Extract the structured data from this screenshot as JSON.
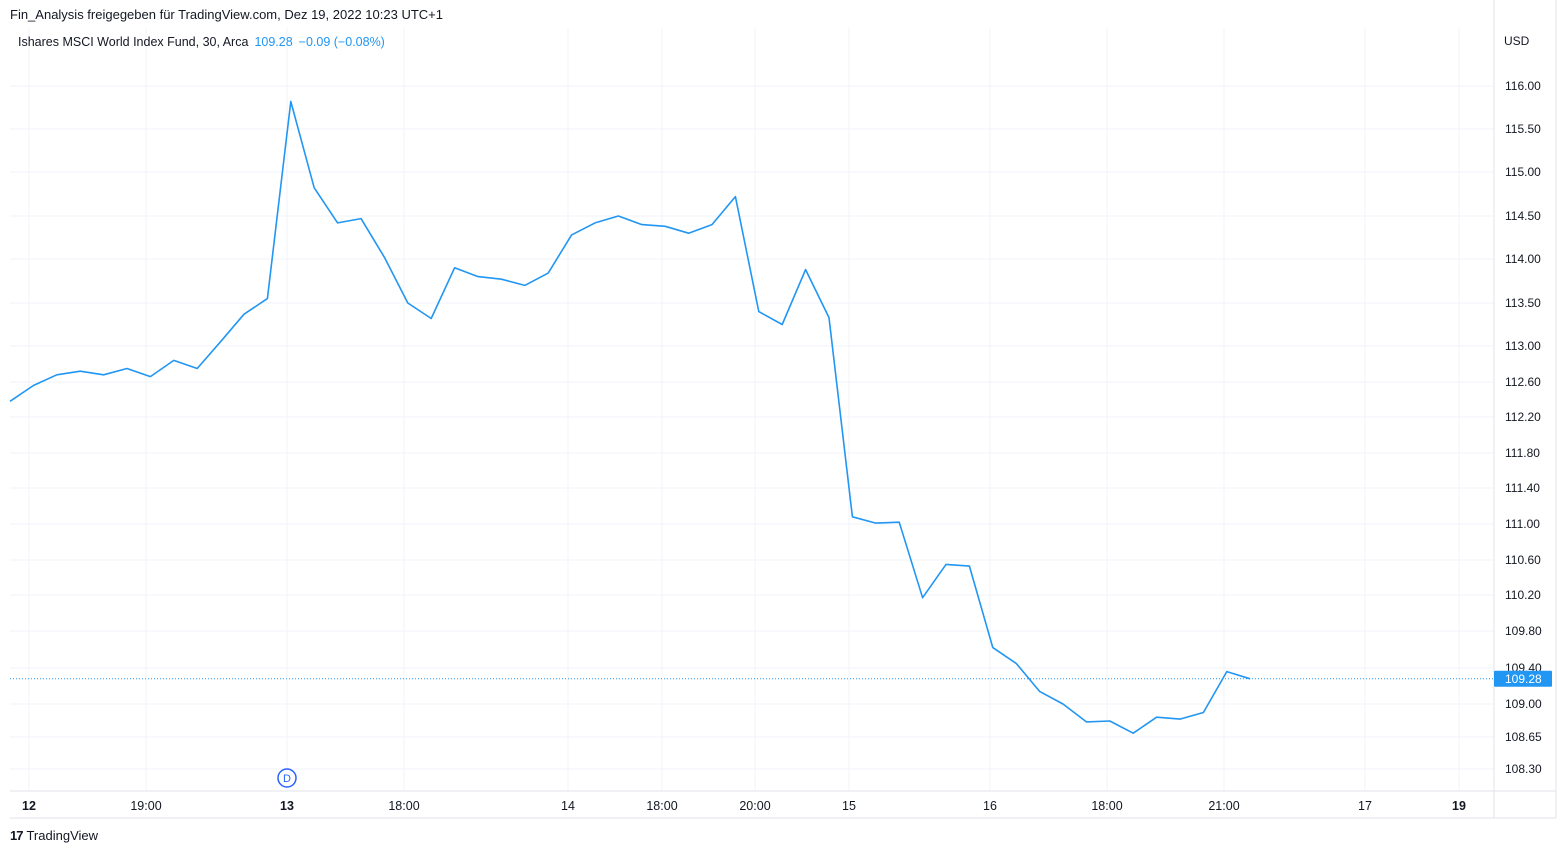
{
  "header": {
    "share_text": "Fin_Analysis freigegeben für TradingView.com, Dez 19, 2022 10:23 UTC+1"
  },
  "legend": {
    "symbol": "Ishares MSCI World Index Fund, 30, Arca",
    "last_price": "109.28",
    "change": "−0.09 (−0.08%)"
  },
  "footer": {
    "brand": "TradingView",
    "logo_icon": "tradingview-logo-icon"
  },
  "colors": {
    "line": "#2196f3",
    "grid": "#f0f3fa",
    "axis_text": "#131722",
    "price_label_bg": "#2196f3"
  },
  "chart_data": {
    "type": "line",
    "title": "Ishares MSCI World Index Fund, 30, Arca",
    "currency": "USD",
    "y_ticks": [
      "116.00",
      "115.50",
      "115.00",
      "114.50",
      "114.00",
      "113.50",
      "113.00",
      "112.60",
      "112.20",
      "111.80",
      "111.40",
      "111.00",
      "110.60",
      "110.20",
      "109.80",
      "109.40",
      "109.00",
      "108.65",
      "108.30"
    ],
    "x_ticks": [
      "12",
      "19:00",
      "13",
      "18:00",
      "14",
      "18:00",
      "20:00",
      "15",
      "16",
      "18:00",
      "21:00",
      "17",
      "19"
    ],
    "x_tick_bold": [
      true,
      false,
      true,
      false,
      false,
      false,
      false,
      false,
      false,
      false,
      false,
      false,
      true
    ],
    "last_value_label": "109.28",
    "dividend_marker": "D",
    "values": [
      112.38,
      112.56,
      112.68,
      112.72,
      112.68,
      112.75,
      112.66,
      112.84,
      112.75,
      113.05,
      113.37,
      113.55,
      115.82,
      114.82,
      114.42,
      114.47,
      114.02,
      113.5,
      113.32,
      113.9,
      113.8,
      113.77,
      113.7,
      113.84,
      114.28,
      114.42,
      114.5,
      114.4,
      114.38,
      114.3,
      114.4,
      114.72,
      113.4,
      113.25,
      113.88,
      113.33,
      111.08,
      111.01,
      111.02,
      110.17,
      110.55,
      110.53,
      109.62,
      109.45,
      109.14,
      109.0,
      108.81,
      108.82,
      108.69,
      108.86,
      108.84,
      108.91,
      109.36,
      109.28
    ]
  }
}
